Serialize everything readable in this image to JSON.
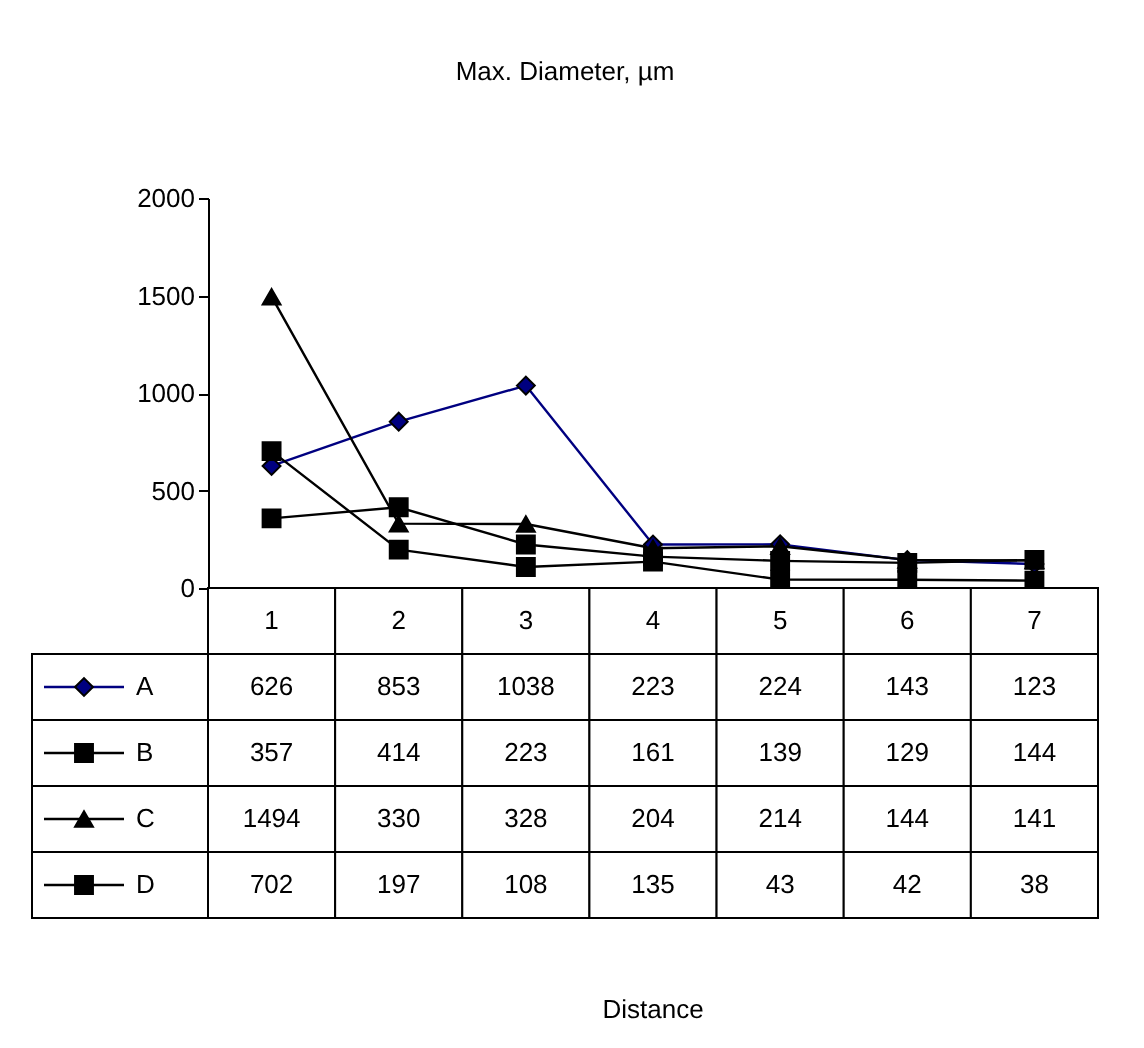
{
  "chart_data": {
    "type": "line",
    "title": "Max. Diameter, µm",
    "annotations": [
      "Distance"
    ],
    "categories": [
      "1",
      "2",
      "3",
      "4",
      "5",
      "6",
      "7"
    ],
    "series": [
      {
        "name": "A",
        "color": "#000080",
        "marker": "diamond",
        "values": [
          626,
          853,
          1038,
          223,
          224,
          143,
          123
        ]
      },
      {
        "name": "B",
        "color": "#000000",
        "marker": "square",
        "values": [
          357,
          414,
          223,
          161,
          139,
          129,
          144
        ]
      },
      {
        "name": "C",
        "color": "#000000",
        "marker": "triangle",
        "values": [
          1494,
          330,
          328,
          204,
          214,
          144,
          141
        ]
      },
      {
        "name": "D",
        "color": "#000000",
        "marker": "square",
        "values": [
          702,
          197,
          108,
          135,
          43,
          42,
          38
        ]
      }
    ],
    "ylim": [
      0,
      2000
    ],
    "yticks": [
      0,
      500,
      1000,
      1500,
      2000
    ],
    "grid": false,
    "legend": "bottom left",
    "data_labels": true
  }
}
